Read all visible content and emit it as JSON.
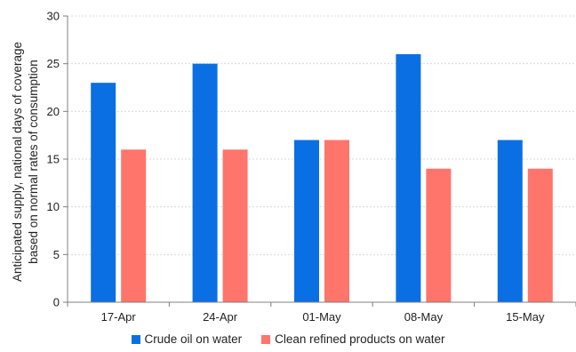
{
  "chart_data": {
    "type": "bar",
    "categories": [
      "17-Apr",
      "24-Apr",
      "01-May",
      "08-May",
      "15-May"
    ],
    "series": [
      {
        "name": "Crude oil on water",
        "values": [
          23,
          25,
          17,
          26,
          17
        ],
        "color": "#0b6fe4"
      },
      {
        "name": "Clean refined products on water",
        "values": [
          16,
          16,
          17,
          14,
          14
        ],
        "color": "#ff756b"
      }
    ],
    "ylabel_lines": [
      "Anticipated supply, national days of coverage",
      "based on normal rates of consumption"
    ],
    "ylim": [
      0,
      30
    ],
    "yticks": [
      0,
      5,
      10,
      15,
      20,
      25,
      30
    ],
    "grid": true,
    "legend_position": "bottom"
  }
}
